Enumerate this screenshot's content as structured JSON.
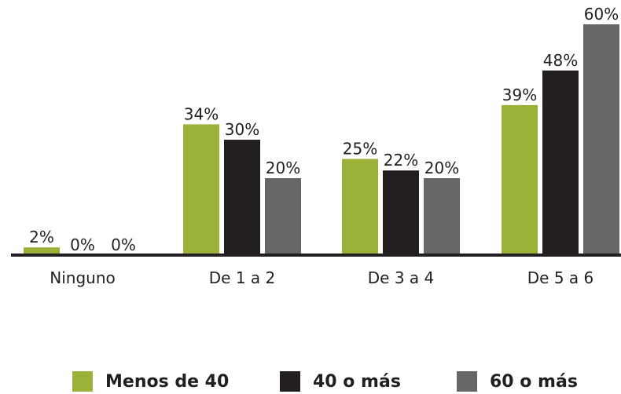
{
  "chart_data": {
    "type": "bar",
    "categories": [
      "Ninguno",
      "De 1 a 2",
      "De 3 a 4",
      "De 5 a 6"
    ],
    "series": [
      {
        "name": "Menos de 40",
        "color": "#99b237",
        "values": [
          2,
          34,
          25,
          39
        ],
        "labels": [
          "2%",
          "34%",
          "25%",
          "39%"
        ]
      },
      {
        "name": "40 o más",
        "color": "#231f20",
        "values": [
          0,
          30,
          22,
          48
        ],
        "labels": [
          "0%",
          "30%",
          "22%",
          "48%"
        ]
      },
      {
        "name": "60 o más",
        "color": "#666668",
        "values": [
          0,
          20,
          20,
          60
        ],
        "labels": [
          "0%",
          "20%",
          "20%",
          "60%"
        ]
      }
    ],
    "ylim": [
      0,
      60
    ],
    "y_unit": "%",
    "legend_position": "bottom",
    "grid": false
  }
}
